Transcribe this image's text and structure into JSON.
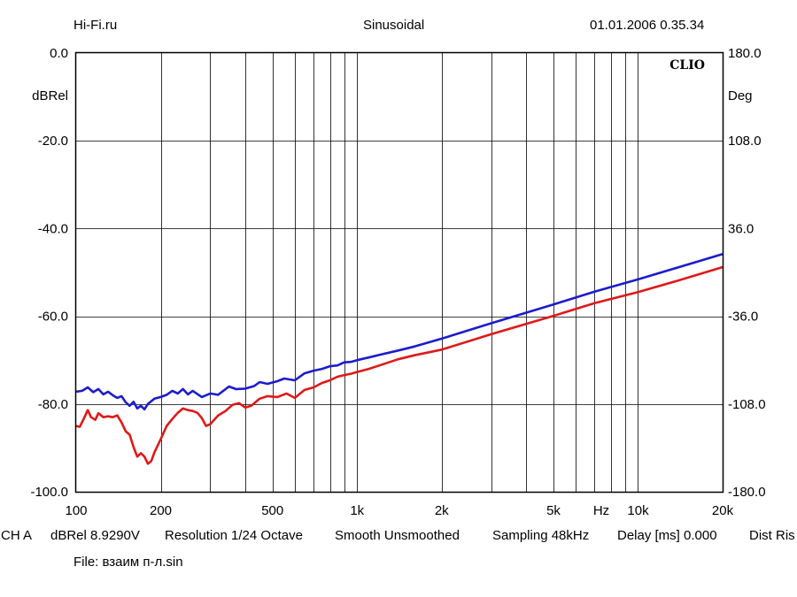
{
  "header": {
    "site": "Hi-Fi.ru",
    "mode": "Sinusoidal",
    "datetime": "01.01.2006 0.35.34"
  },
  "watermark": "CLIO",
  "info_bar": {
    "channel": "CH A",
    "level": "dBRel 8.9290V",
    "resolution": "Resolution 1/24 Octave",
    "smoothing": "Smooth Unsmoothed",
    "sampling": "Sampling 48kHz",
    "delay": "Delay [ms] 0.000",
    "dist": "Dist Ris"
  },
  "file_label": "File: взаим п-л.sin",
  "colors": {
    "series_blue": "#1c1ccc",
    "series_red": "#e01818",
    "grid": "#000000",
    "background": "#ffffff"
  },
  "chart_data": {
    "type": "line",
    "x_scale": "log",
    "xlim": [
      100,
      20000
    ],
    "ylim": [
      -100,
      0
    ],
    "y2lim": [
      -180,
      180
    ],
    "ylabel": "dBRel",
    "y2label": "Deg",
    "xunit": "Hz",
    "x_ticks": [
      {
        "value": 100,
        "label": "100"
      },
      {
        "value": 200,
        "label": "200"
      },
      {
        "value": 500,
        "label": "500"
      },
      {
        "value": 1000,
        "label": "1k"
      },
      {
        "value": 2000,
        "label": "2k"
      },
      {
        "value": 5000,
        "label": "5k"
      },
      {
        "value": 10000,
        "label": "10k"
      },
      {
        "value": 20000,
        "label": "20k"
      }
    ],
    "y_ticks": [
      {
        "value": 0,
        "label": "0.0"
      },
      {
        "value": -20,
        "label": "-20.0"
      },
      {
        "value": -40,
        "label": "-40.0"
      },
      {
        "value": -60,
        "label": "-60.0"
      },
      {
        "value": -80,
        "label": "-80.0"
      },
      {
        "value": -100,
        "label": "-100.0"
      }
    ],
    "y2_ticks": [
      {
        "value": 180,
        "label": "180.0"
      },
      {
        "value": 108,
        "label": "108.0"
      },
      {
        "value": 36,
        "label": "36.0"
      },
      {
        "value": -36,
        "label": "-36.0"
      },
      {
        "value": -108,
        "label": "-108.0"
      },
      {
        "value": -180,
        "label": "-180.0"
      }
    ],
    "grid": true,
    "series": [
      {
        "color": "#1c1ccc",
        "points": [
          [
            100,
            -77.2
          ],
          [
            105,
            -77.0
          ],
          [
            110,
            -76.2
          ],
          [
            115,
            -77.3
          ],
          [
            120,
            -76.6
          ],
          [
            125,
            -77.8
          ],
          [
            130,
            -77.2
          ],
          [
            135,
            -78.0
          ],
          [
            140,
            -78.6
          ],
          [
            145,
            -78.2
          ],
          [
            150,
            -79.6
          ],
          [
            155,
            -80.4
          ],
          [
            160,
            -79.5
          ],
          [
            165,
            -81.0
          ],
          [
            170,
            -80.4
          ],
          [
            175,
            -81.2
          ],
          [
            180,
            -80.0
          ],
          [
            190,
            -78.8
          ],
          [
            200,
            -78.4
          ],
          [
            210,
            -77.9
          ],
          [
            220,
            -77.0
          ],
          [
            230,
            -77.6
          ],
          [
            240,
            -76.6
          ],
          [
            250,
            -77.8
          ],
          [
            260,
            -77.0
          ],
          [
            280,
            -78.4
          ],
          [
            300,
            -77.6
          ],
          [
            320,
            -77.9
          ],
          [
            350,
            -76.0
          ],
          [
            370,
            -76.6
          ],
          [
            400,
            -76.5
          ],
          [
            430,
            -75.9
          ],
          [
            450,
            -75.0
          ],
          [
            480,
            -75.4
          ],
          [
            520,
            -74.8
          ],
          [
            550,
            -74.2
          ],
          [
            600,
            -74.6
          ],
          [
            650,
            -73.0
          ],
          [
            700,
            -72.4
          ],
          [
            750,
            -72.0
          ],
          [
            800,
            -71.4
          ],
          [
            850,
            -71.2
          ],
          [
            900,
            -70.5
          ],
          [
            950,
            -70.4
          ],
          [
            1000,
            -70.0
          ],
          [
            1100,
            -69.4
          ],
          [
            1200,
            -68.8
          ],
          [
            1400,
            -67.8
          ],
          [
            1600,
            -66.9
          ],
          [
            2000,
            -65.1
          ],
          [
            3000,
            -61.6
          ],
          [
            5000,
            -57.3
          ],
          [
            7000,
            -54.4
          ],
          [
            10000,
            -51.6
          ],
          [
            14000,
            -48.8
          ],
          [
            20000,
            -45.8
          ]
        ]
      },
      {
        "color": "#e01818",
        "points": [
          [
            100,
            -85.0
          ],
          [
            103,
            -85.2
          ],
          [
            106,
            -83.6
          ],
          [
            110,
            -81.4
          ],
          [
            113,
            -83.0
          ],
          [
            117,
            -83.6
          ],
          [
            120,
            -82.1
          ],
          [
            125,
            -83.0
          ],
          [
            130,
            -82.8
          ],
          [
            135,
            -83.0
          ],
          [
            140,
            -82.6
          ],
          [
            145,
            -84.2
          ],
          [
            150,
            -86.2
          ],
          [
            155,
            -87.0
          ],
          [
            160,
            -89.8
          ],
          [
            165,
            -92.0
          ],
          [
            170,
            -91.2
          ],
          [
            175,
            -92.0
          ],
          [
            180,
            -93.6
          ],
          [
            185,
            -93.0
          ],
          [
            190,
            -91.0
          ],
          [
            200,
            -88.0
          ],
          [
            210,
            -85.0
          ],
          [
            220,
            -83.4
          ],
          [
            230,
            -82.0
          ],
          [
            240,
            -81.0
          ],
          [
            250,
            -81.4
          ],
          [
            260,
            -81.6
          ],
          [
            270,
            -82.0
          ],
          [
            280,
            -83.2
          ],
          [
            290,
            -85.0
          ],
          [
            300,
            -84.6
          ],
          [
            320,
            -82.6
          ],
          [
            340,
            -81.6
          ],
          [
            360,
            -80.2
          ],
          [
            380,
            -79.8
          ],
          [
            400,
            -80.8
          ],
          [
            420,
            -80.4
          ],
          [
            450,
            -78.8
          ],
          [
            480,
            -78.2
          ],
          [
            520,
            -78.4
          ],
          [
            560,
            -77.6
          ],
          [
            600,
            -78.6
          ],
          [
            650,
            -76.8
          ],
          [
            700,
            -76.2
          ],
          [
            750,
            -75.2
          ],
          [
            800,
            -74.6
          ],
          [
            850,
            -73.8
          ],
          [
            900,
            -73.4
          ],
          [
            950,
            -73.1
          ],
          [
            1000,
            -72.7
          ],
          [
            1100,
            -72.0
          ],
          [
            1200,
            -71.2
          ],
          [
            1400,
            -69.8
          ],
          [
            1600,
            -68.9
          ],
          [
            2000,
            -67.6
          ],
          [
            3000,
            -64.1
          ],
          [
            5000,
            -59.9
          ],
          [
            7000,
            -57.0
          ],
          [
            10000,
            -54.5
          ],
          [
            14000,
            -51.8
          ],
          [
            20000,
            -48.8
          ]
        ]
      }
    ]
  }
}
